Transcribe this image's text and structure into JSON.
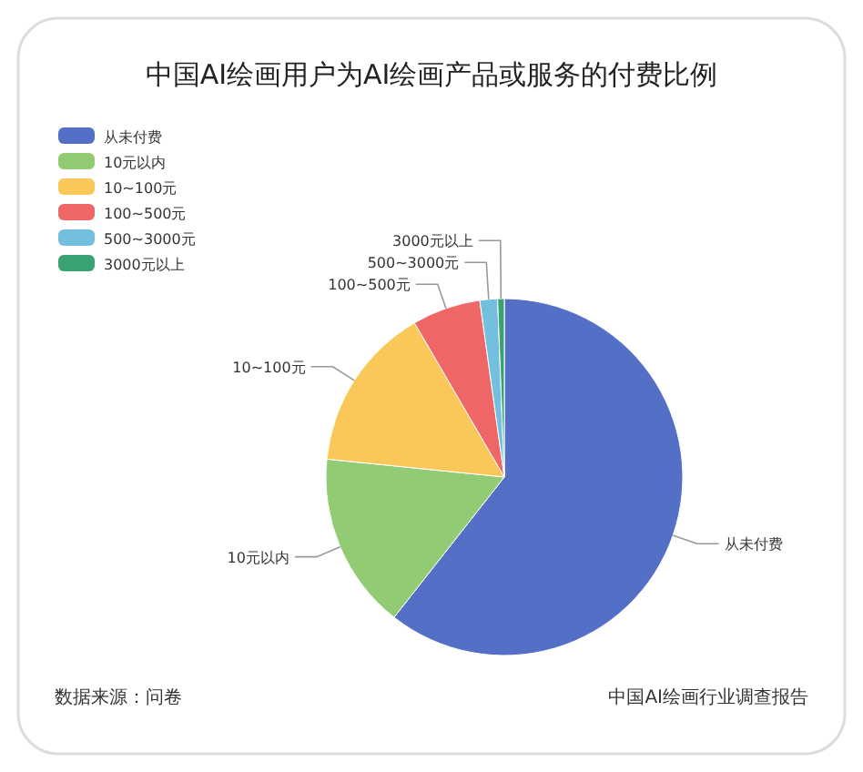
{
  "chart_data": {
    "type": "pie",
    "title": "中国AI绘画用户为AI绘画产品或服务的付费比例",
    "categories": [
      "从未付费",
      "10元以内",
      "10~100元",
      "100~500元",
      "500~3000元",
      "3000元以上"
    ],
    "values": [
      60.6,
      16,
      15,
      6.2,
      1.6,
      0.6
    ],
    "colors": [
      "#5470c6",
      "#91cc75",
      "#fac858",
      "#ee6666",
      "#73c0de",
      "#3ba272"
    ],
    "legend": "top left",
    "annotations": [
      "数据来源：问卷",
      "中国AI绘画行业调查报告"
    ]
  }
}
